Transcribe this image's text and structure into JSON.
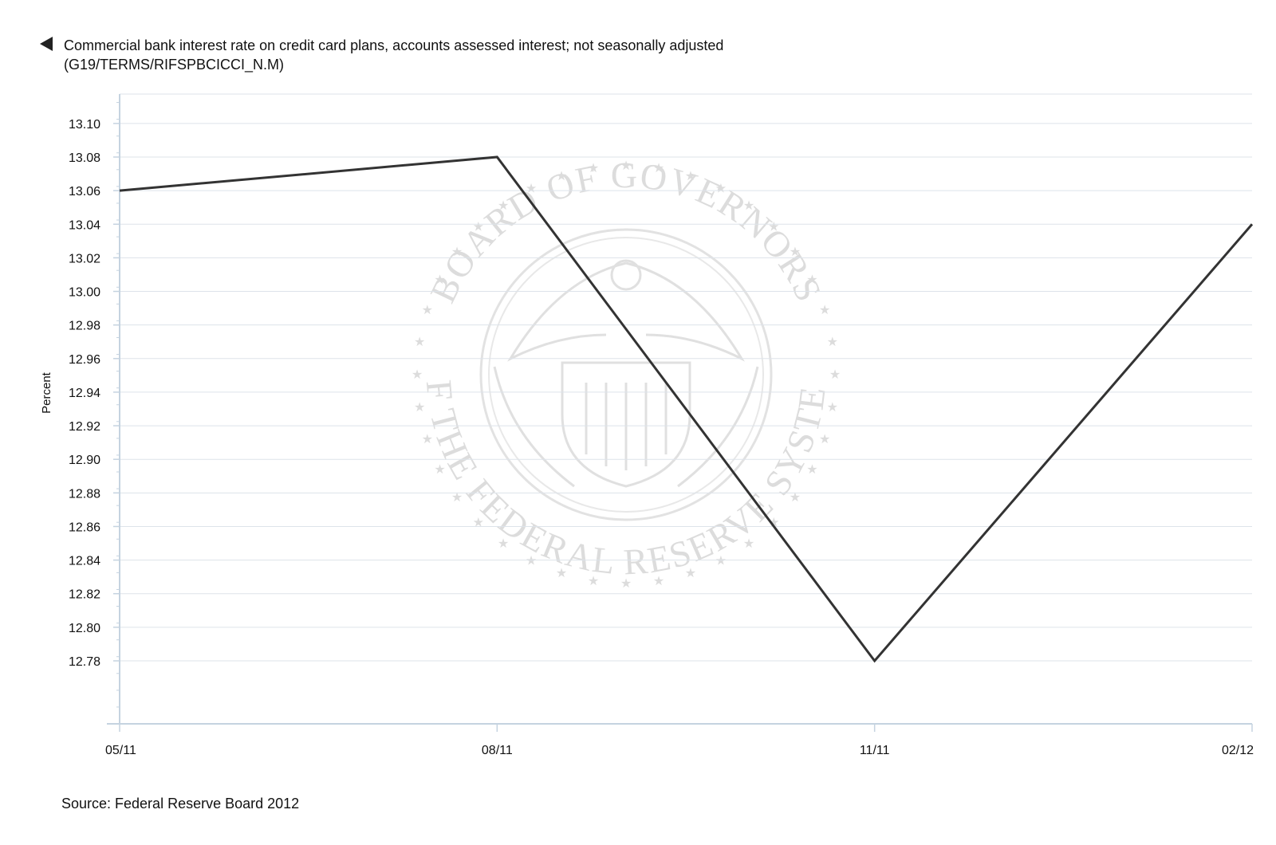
{
  "header": {
    "collapse_icon": "triangle-left-icon",
    "title_line1": "Commercial bank interest rate on credit card plans, accounts assessed interest; not seasonally adjusted",
    "title_line2": "(G19/TERMS/RIFSPBCICCI_N.M)"
  },
  "watermark": {
    "icon": "federal-reserve-seal-icon",
    "text_top": "BOARD OF GOVERNORS",
    "text_bottom": "OF THE FEDERAL RESERVE SYSTEM"
  },
  "footer": {
    "source": "Source: Federal Reserve Board 2012"
  },
  "colors": {
    "line": "#333333",
    "grid": "#dde3ea",
    "axis": "#c5d3e0",
    "watermark": "#dcdcdc"
  },
  "chart_data": {
    "type": "line",
    "title": "Commercial bank interest rate on credit card plans, accounts assessed interest; not seasonally adjusted",
    "subtitle": "(G19/TERMS/RIFSPBCICCI_N.M)",
    "xlabel": "",
    "ylabel": "Percent",
    "categories": [
      "05/11",
      "08/11",
      "11/11",
      "02/12"
    ],
    "series": [
      {
        "values": [
          13.06,
          13.08,
          12.78,
          13.04
        ]
      }
    ],
    "yticks": [
      "13.10",
      "13.08",
      "13.06",
      "13.04",
      "13.02",
      "13.00",
      "12.98",
      "12.96",
      "12.94",
      "12.92",
      "12.90",
      "12.88",
      "12.86",
      "12.84",
      "12.82",
      "12.80",
      "12.78"
    ],
    "ylim": [
      12.7425,
      13.1175
    ],
    "grid": true,
    "legend": "none"
  }
}
